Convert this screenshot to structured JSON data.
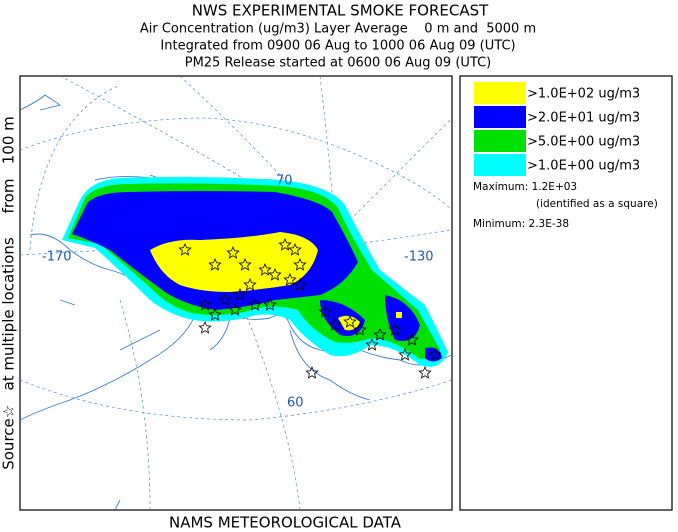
{
  "header": {
    "title": "NWS EXPERIMENTAL SMOKE FORECAST",
    "lines": [
      "Air Concentration (ug/m3) Layer Average    0 m and  5000 m",
      "Integrated from 0900 06 Aug to 1000 06 Aug 09 (UTC)",
      "PM25 Release started at 0600 06 Aug 09 (UTC)"
    ]
  },
  "side_label": "Source☆   at multiple locations     from   100 m",
  "legend": {
    "entries": [
      {
        "label": ">1.0E+02 ug/m3",
        "color": "#ffff00"
      },
      {
        "label": ">2.0E+01 ug/m3",
        "color": "#0000ff"
      },
      {
        "label": ">5.0E+00 ug/m3",
        "color": "#00e000"
      },
      {
        "label": ">1.0E+00 ug/m3",
        "color": "#00ffff"
      }
    ],
    "maximum": "Maximum: 1.2E+03",
    "maximum_note": "(identified as a square)",
    "minimum": "Minimum: 2.3E-38"
  },
  "map": {
    "labels": [
      "70",
      "-170",
      "-130",
      "60"
    ]
  },
  "footer": "NAMS METEOROLOGICAL DATA"
}
